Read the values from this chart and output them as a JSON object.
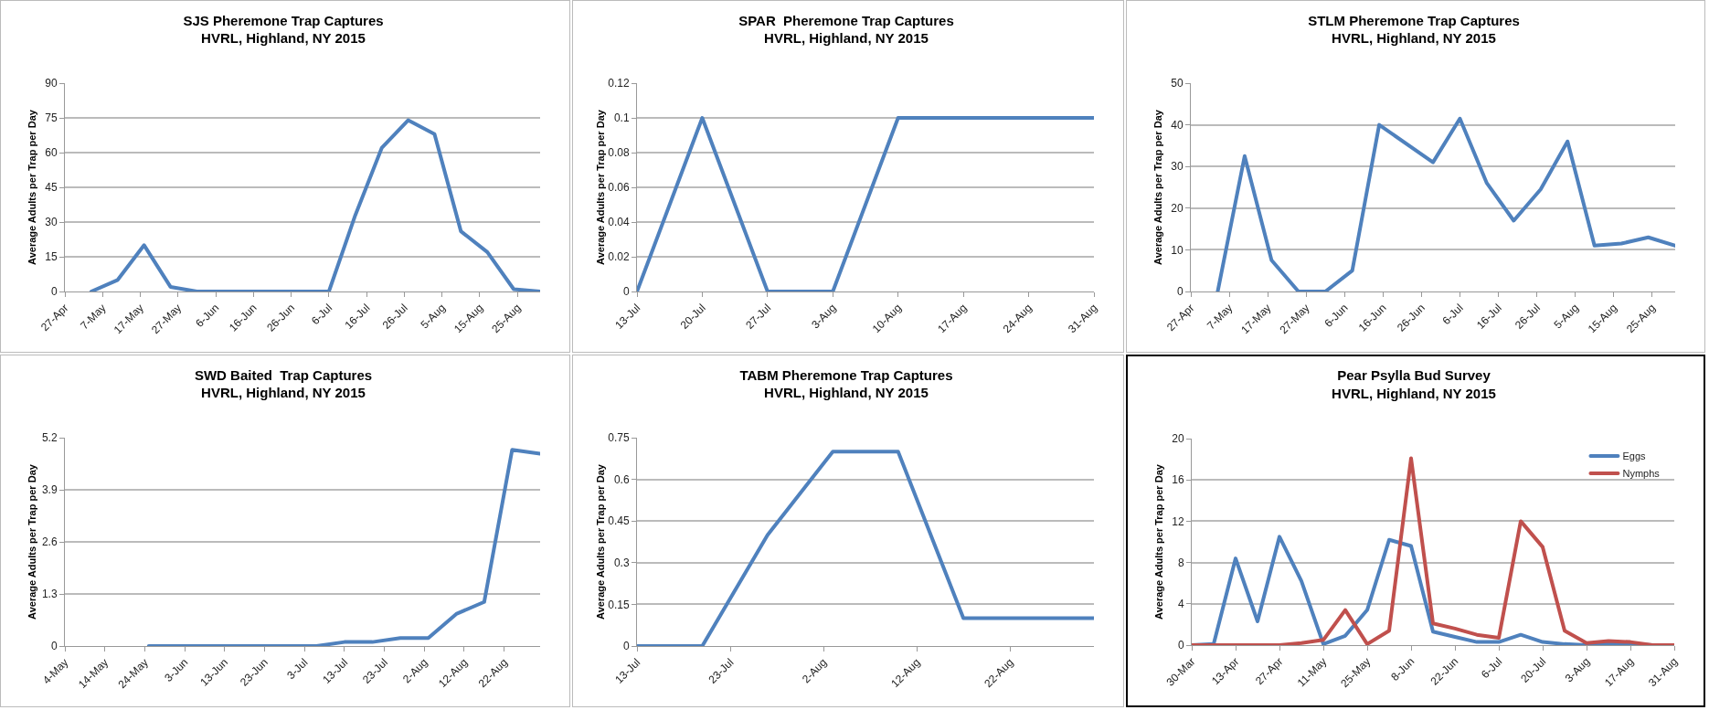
{
  "chart_data": [
    {
      "type": "line",
      "title": "SJS Pheremone Trap Captures",
      "subtitle": "HVRL, Highland, NY 2015",
      "ylabel": "Average Adults per Trap per Day",
      "x": [
        "--05-04",
        "--05-11",
        "--05-18",
        "--05-25",
        "--06-01",
        "--06-08",
        "--06-15",
        "--06-22",
        "--06-29",
        "--07-06",
        "--07-13",
        "--07-20",
        "--07-27",
        "--08-03",
        "--08-10",
        "--08-17",
        "--08-24",
        "--08-31"
      ],
      "series": [
        {
          "color": "#4f81bd",
          "values": [
            0,
            5,
            20,
            2,
            0,
            0,
            0,
            0,
            0,
            0,
            33,
            62,
            74,
            68,
            26,
            17,
            1,
            0
          ]
        }
      ],
      "xlim": [
        "--04-27",
        "--08-31"
      ],
      "xticks": [
        {
          "value": "--04-27",
          "label": "27-Apr"
        },
        {
          "value": "--05-07",
          "label": "7-May"
        },
        {
          "value": "--05-17",
          "label": "17-May"
        },
        {
          "value": "--05-27",
          "label": "27-May"
        },
        {
          "value": "--06-06",
          "label": "6-Jun"
        },
        {
          "value": "--06-16",
          "label": "16-Jun"
        },
        {
          "value": "--06-26",
          "label": "26-Jun"
        },
        {
          "value": "--07-06",
          "label": "6-Jul"
        },
        {
          "value": "--07-16",
          "label": "16-Jul"
        },
        {
          "value": "--07-26",
          "label": "26-Jul"
        },
        {
          "value": "--08-05",
          "label": "5-Aug"
        },
        {
          "value": "--08-15",
          "label": "15-Aug"
        },
        {
          "value": "--08-25",
          "label": "25-Aug"
        }
      ],
      "ylim": [
        0,
        90
      ],
      "yticks": [
        0,
        15,
        30,
        45,
        60,
        75,
        90
      ],
      "grid": "y",
      "marker": "none",
      "line_style": "solid"
    },
    {
      "type": "line",
      "title": "SPAR  Pheremone Trap Captures",
      "subtitle": "HVRL, Highland, NY 2015",
      "ylabel": "Average Adults per Trap per Day",
      "x": [
        "--07-13",
        "--07-20",
        "--07-27",
        "--08-03",
        "--08-10",
        "--08-17",
        "--08-24",
        "--08-31"
      ],
      "series": [
        {
          "color": "#4f81bd",
          "values": [
            0,
            0.1,
            0,
            0,
            0.1,
            0.1,
            0.1,
            0.1
          ]
        }
      ],
      "xlim": [
        "--07-13",
        "--08-31"
      ],
      "xticks": [
        {
          "value": "--07-13",
          "label": "13-Jul"
        },
        {
          "value": "--07-20",
          "label": "20-Jul"
        },
        {
          "value": "--07-27",
          "label": "27-Jul"
        },
        {
          "value": "--08-03",
          "label": "3-Aug"
        },
        {
          "value": "--08-10",
          "label": "10-Aug"
        },
        {
          "value": "--08-17",
          "label": "17-Aug"
        },
        {
          "value": "--08-24",
          "label": "24-Aug"
        },
        {
          "value": "--08-31",
          "label": "31-Aug"
        }
      ],
      "ylim": [
        0,
        0.12
      ],
      "yticks": [
        0,
        0.02,
        0.04,
        0.06,
        0.08,
        0.1,
        0.12
      ],
      "grid": "y",
      "marker": "none",
      "line_style": "solid"
    },
    {
      "type": "line",
      "title": "STLM Pheremone Trap Captures",
      "subtitle": "HVRL, Highland, NY 2015",
      "ylabel": "Average Adults per Trap per Day",
      "x": [
        "--05-04",
        "--05-11",
        "--05-18",
        "--05-25",
        "--06-01",
        "--06-08",
        "--06-15",
        "--06-29",
        "--07-06",
        "--07-13",
        "--07-20",
        "--07-27",
        "--08-03",
        "--08-10",
        "--08-17",
        "--08-24",
        "--08-31"
      ],
      "series": [
        {
          "color": "#4f81bd",
          "values": [
            0,
            32.5,
            7.5,
            0,
            0,
            5,
            40,
            31,
            41.5,
            26,
            17,
            24.5,
            36,
            11,
            11.5,
            13,
            11
          ]
        }
      ],
      "xlim": [
        "--04-27",
        "--08-31"
      ],
      "xticks": [
        {
          "value": "--04-27",
          "label": "27-Apr"
        },
        {
          "value": "--05-07",
          "label": "7-May"
        },
        {
          "value": "--05-17",
          "label": "17-May"
        },
        {
          "value": "--05-27",
          "label": "27-May"
        },
        {
          "value": "--06-06",
          "label": "6-Jun"
        },
        {
          "value": "--06-16",
          "label": "16-Jun"
        },
        {
          "value": "--06-26",
          "label": "26-Jun"
        },
        {
          "value": "--07-06",
          "label": "6-Jul"
        },
        {
          "value": "--07-16",
          "label": "16-Jul"
        },
        {
          "value": "--07-26",
          "label": "26-Jul"
        },
        {
          "value": "--08-05",
          "label": "5-Aug"
        },
        {
          "value": "--08-15",
          "label": "15-Aug"
        },
        {
          "value": "--08-25",
          "label": "25-Aug"
        }
      ],
      "ylim": [
        0,
        50
      ],
      "yticks": [
        0,
        10,
        20,
        30,
        40,
        50
      ],
      "grid": "y",
      "marker": "none",
      "line_style": "solid"
    },
    {
      "type": "line",
      "title": "SWD Baited  Trap Captures",
      "subtitle": "HVRL, Highland, NY 2015",
      "ylabel": "Average Adults per Trap per Day",
      "x": [
        "--05-25",
        "--06-01",
        "--06-08",
        "--06-15",
        "--06-22",
        "--06-29",
        "--07-06",
        "--07-13",
        "--07-20",
        "--07-27",
        "--08-03",
        "--08-10",
        "--08-17",
        "--08-24",
        "--08-31"
      ],
      "series": [
        {
          "color": "#4f81bd",
          "values": [
            0,
            0,
            0,
            0,
            0,
            0,
            0,
            0.1,
            0.1,
            0.2,
            0.2,
            0.8,
            1.1,
            4.9,
            4.8
          ]
        }
      ],
      "xlim": [
        "--05-04",
        "--08-31"
      ],
      "xticks": [
        {
          "value": "--05-04",
          "label": "4-May"
        },
        {
          "value": "--05-14",
          "label": "14-May"
        },
        {
          "value": "--05-24",
          "label": "24-May"
        },
        {
          "value": "--06-03",
          "label": "3-Jun"
        },
        {
          "value": "--06-13",
          "label": "13-Jun"
        },
        {
          "value": "--06-23",
          "label": "23-Jun"
        },
        {
          "value": "--07-03",
          "label": "3-Jul"
        },
        {
          "value": "--07-13",
          "label": "13-Jul"
        },
        {
          "value": "--07-23",
          "label": "23-Jul"
        },
        {
          "value": "--08-02",
          "label": "2-Aug"
        },
        {
          "value": "--08-12",
          "label": "12-Aug"
        },
        {
          "value": "--08-22",
          "label": "22-Aug"
        }
      ],
      "ylim": [
        0,
        5.2
      ],
      "yticks": [
        0,
        1.3,
        2.6,
        3.9,
        5.2
      ],
      "grid": "y",
      "marker": "none",
      "line_style": "solid"
    },
    {
      "type": "line",
      "title": "TABM Pheremone Trap Captures",
      "subtitle": "HVRL, Highland, NY 2015",
      "ylabel": "Average Adults per Trap per Day",
      "x": [
        "--07-13",
        "--07-20",
        "--07-27",
        "--08-03",
        "--08-10",
        "--08-17",
        "--08-24",
        "--08-31"
      ],
      "series": [
        {
          "color": "#4f81bd",
          "values": [
            0,
            0,
            0.4,
            0.7,
            0.7,
            0.1,
            0.1,
            0.1
          ]
        }
      ],
      "xlim": [
        "--07-13",
        "--08-31"
      ],
      "xticks": [
        {
          "value": "--07-13",
          "label": "13-Jul"
        },
        {
          "value": "--07-23",
          "label": "23-Jul"
        },
        {
          "value": "--08-02",
          "label": "2-Aug"
        },
        {
          "value": "--08-12",
          "label": "12-Aug"
        },
        {
          "value": "--08-22",
          "label": "22-Aug"
        }
      ],
      "ylim": [
        0,
        0.75
      ],
      "yticks": [
        0,
        0.15,
        0.3,
        0.45,
        0.6,
        0.75
      ],
      "grid": "y",
      "marker": "none",
      "line_style": "solid"
    },
    {
      "type": "line",
      "title": "Pear Psylla Bud Survey",
      "subtitle": "HVRL, Highland, NY 2015",
      "ylabel": "Average Adults per Trap per Day",
      "x": [
        "--03-30",
        "--04-06",
        "--04-13",
        "--04-20",
        "--04-27",
        "--05-04",
        "--05-11",
        "--05-18",
        "--05-25",
        "--06-01",
        "--06-08",
        "--06-15",
        "--06-22",
        "--06-29",
        "--07-06",
        "--07-13",
        "--07-20",
        "--07-27",
        "--08-03",
        "--08-10",
        "--08-17",
        "--08-24",
        "--08-31"
      ],
      "series": [
        {
          "name": "Eggs",
          "color": "#4f81bd",
          "values": [
            0,
            0.1,
            8.4,
            2.3,
            10.5,
            6.2,
            0.1,
            0.9,
            3.4,
            10.2,
            9.6,
            1.3,
            0.8,
            0.3,
            0.3,
            1,
            0.3,
            0.1,
            0,
            0.1,
            0.1,
            0,
            0
          ]
        },
        {
          "name": "Nymphs",
          "color": "#c0504d",
          "values": [
            0,
            0,
            0,
            0,
            0,
            0.2,
            0.5,
            3.4,
            0.1,
            1.4,
            18.1,
            2.1,
            1.6,
            1,
            0.7,
            12,
            9.5,
            1.4,
            0.2,
            0.4,
            0.3,
            0,
            0
          ]
        }
      ],
      "xlim": [
        "--03-30",
        "--08-31"
      ],
      "xticks": [
        {
          "value": "--03-30",
          "label": "30-Mar"
        },
        {
          "value": "--04-13",
          "label": "13-Apr"
        },
        {
          "value": "--04-27",
          "label": "27-Apr"
        },
        {
          "value": "--05-11",
          "label": "11-May"
        },
        {
          "value": "--05-25",
          "label": "25-May"
        },
        {
          "value": "--06-08",
          "label": "8-Jun"
        },
        {
          "value": "--06-22",
          "label": "22-Jun"
        },
        {
          "value": "--07-06",
          "label": "6-Jul"
        },
        {
          "value": "--07-20",
          "label": "20-Jul"
        },
        {
          "value": "--08-03",
          "label": "3-Aug"
        },
        {
          "value": "--08-17",
          "label": "17-Aug"
        },
        {
          "value": "--08-31",
          "label": "31-Aug"
        }
      ],
      "ylim": [
        0,
        20
      ],
      "yticks": [
        0,
        4,
        8,
        12,
        16,
        20
      ],
      "grid": "y",
      "legend": "top right",
      "marker": "none",
      "line_style": "solid"
    }
  ]
}
